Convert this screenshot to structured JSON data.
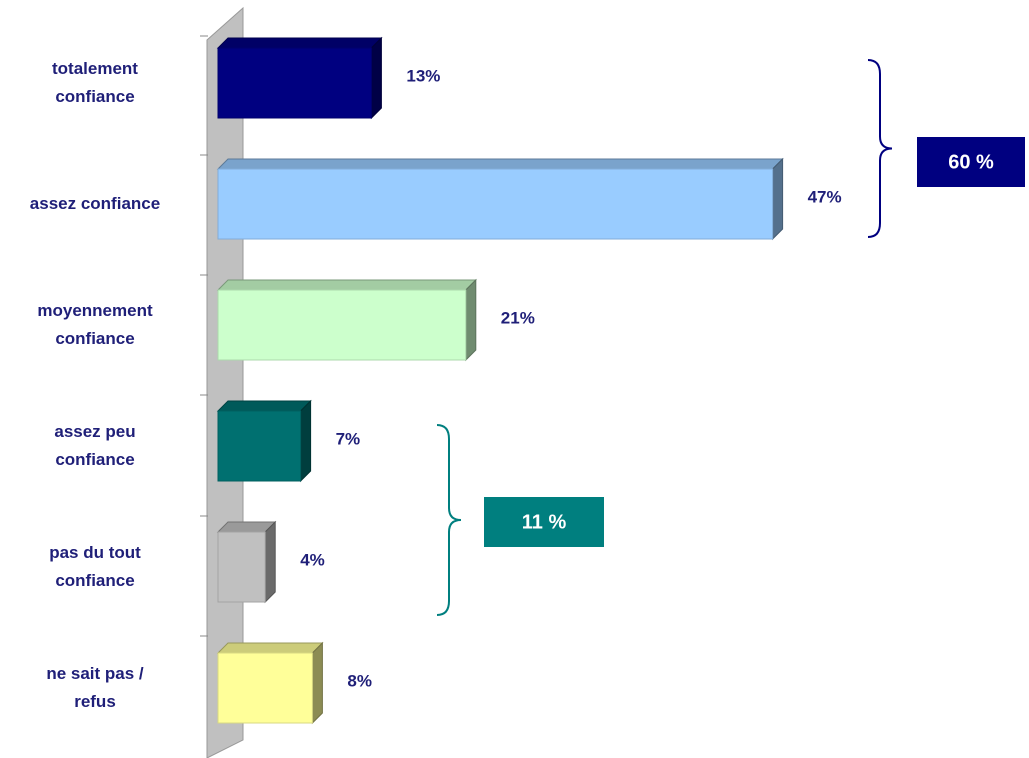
{
  "chart_data": {
    "type": "bar",
    "orientation": "horizontal",
    "categories": [
      "totalement\nconfiance",
      "assez confiance",
      "moyennement\nconfiance",
      "assez peu\nconfiance",
      "pas du tout\nconfiance",
      "ne sait pas /\nrefus"
    ],
    "values": [
      13,
      47,
      21,
      7,
      4,
      8
    ],
    "value_labels": [
      "13%",
      "47%",
      "21%",
      "7%",
      "4%",
      "8%"
    ],
    "colors": [
      "#000080",
      "#99ccff",
      "#ccffcc",
      "#007070",
      "#c0c0c0",
      "#ffff99"
    ],
    "annotations": [
      {
        "text": "60 %",
        "color": "#000080"
      },
      {
        "text": "11 %",
        "color": "#007f7f"
      }
    ]
  }
}
